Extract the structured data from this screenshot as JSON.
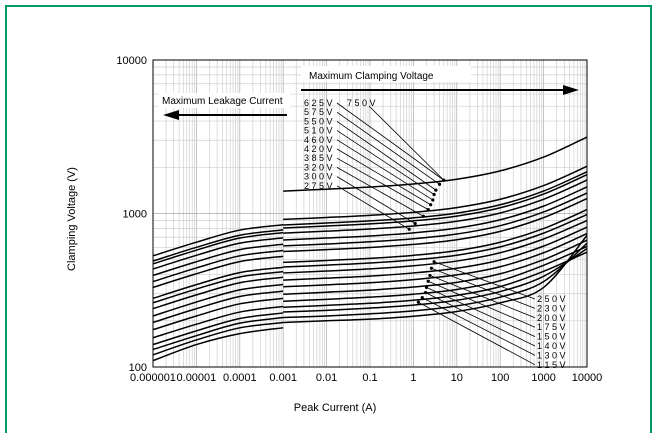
{
  "colors": {
    "frame": "#009a66",
    "grid": "#cfcfcf",
    "curve": "#000000",
    "background": "#ffffff"
  },
  "chart_data": {
    "type": "line",
    "title": "",
    "xlabel": "Peak Current (A)",
    "ylabel": "Clamping Voltage (V)",
    "x_scale": "log",
    "y_scale": "log",
    "xlim": [
      1e-06,
      10000
    ],
    "ylim": [
      100,
      10000
    ],
    "grid": true,
    "x_ticks": [
      "0.000001",
      "0.00001",
      "0.0001",
      "0.001",
      "0.01",
      "0.1",
      "1",
      "10",
      "100",
      "1000",
      "10000"
    ],
    "y_ticks": [
      "100",
      "1000",
      "10000"
    ],
    "annotations": {
      "max_clamping": "Maximum Clamping Voltage",
      "max_leakage": "Maximum Leakage Current"
    },
    "upper_labels": [
      "6 2 5 V",
      "5 7 5 V",
      "5 5 0 V",
      "5 1 0 V",
      "4 6 0 V",
      "4 2 0 V",
      "3 8 5 V",
      "3 2 0 V",
      "3 0 0 V",
      "2 7 5 V"
    ],
    "upper_top_label": "7 5 0 V",
    "lower_labels": [
      "2 5 0 V",
      "2 3 0 V",
      "2 0 0 V",
      "1 7 5 V",
      "1 5 0 V",
      "1 4 0 V",
      "1 3 0 V",
      "1 1 5 V"
    ],
    "series": [
      {
        "name": "1 1 5 V",
        "leakage": [
          [
            1e-06,
            110
          ],
          [
            1e-05,
            140
          ],
          [
            0.0001,
            165
          ],
          [
            0.001,
            180
          ]
        ],
        "clamping": [
          [
            0.001,
            195
          ],
          [
            0.01,
            200
          ],
          [
            0.1,
            205
          ],
          [
            1,
            214
          ],
          [
            10,
            230
          ],
          [
            100,
            262
          ],
          [
            1000,
            330
          ],
          [
            10000,
            720
          ]
        ]
      },
      {
        "name": "1 3 0 V",
        "leakage": [
          [
            1e-06,
            120
          ],
          [
            1e-05,
            150
          ],
          [
            0.0001,
            180
          ],
          [
            0.001,
            195
          ]
        ],
        "clamping": [
          [
            0.001,
            210
          ],
          [
            0.01,
            215
          ],
          [
            0.1,
            222
          ],
          [
            1,
            232
          ],
          [
            10,
            250
          ],
          [
            100,
            285
          ],
          [
            1000,
            360
          ],
          [
            10000,
            640
          ]
        ]
      },
      {
        "name": "1 4 0 V",
        "leakage": [
          [
            1e-06,
            130
          ],
          [
            1e-05,
            160
          ],
          [
            0.0001,
            193
          ],
          [
            0.001,
            210
          ]
        ],
        "clamping": [
          [
            0.001,
            228
          ],
          [
            0.01,
            234
          ],
          [
            0.1,
            242
          ],
          [
            1,
            253
          ],
          [
            10,
            272
          ],
          [
            100,
            310
          ],
          [
            1000,
            390
          ],
          [
            10000,
            590
          ]
        ]
      },
      {
        "name": "1 5 0 V",
        "leakage": [
          [
            1e-06,
            140
          ],
          [
            1e-05,
            172
          ],
          [
            0.0001,
            207
          ],
          [
            0.001,
            225
          ]
        ],
        "clamping": [
          [
            0.001,
            245
          ],
          [
            0.01,
            252
          ],
          [
            0.1,
            260
          ],
          [
            1,
            272
          ],
          [
            10,
            293
          ],
          [
            100,
            334
          ],
          [
            1000,
            420
          ],
          [
            10000,
            560
          ]
        ]
      },
      {
        "name": "1 7 5 V",
        "leakage": [
          [
            1e-06,
            155
          ],
          [
            1e-05,
            190
          ],
          [
            0.0001,
            228
          ],
          [
            0.001,
            248
          ]
        ],
        "clamping": [
          [
            0.001,
            268
          ],
          [
            0.01,
            276
          ],
          [
            0.1,
            285
          ],
          [
            1,
            298
          ],
          [
            10,
            320
          ],
          [
            100,
            365
          ],
          [
            1000,
            460
          ],
          [
            10000,
            610
          ]
        ]
      },
      {
        "name": "2 0 0 V",
        "leakage": [
          [
            1e-06,
            175
          ],
          [
            1e-05,
            215
          ],
          [
            0.0001,
            258
          ],
          [
            0.001,
            280
          ]
        ],
        "clamping": [
          [
            0.001,
            298
          ],
          [
            0.01,
            307
          ],
          [
            0.1,
            317
          ],
          [
            1,
            332
          ],
          [
            10,
            356
          ],
          [
            100,
            405
          ],
          [
            1000,
            500
          ],
          [
            10000,
            670
          ]
        ]
      },
      {
        "name": "2 3 0 V",
        "leakage": [
          [
            1e-06,
            195
          ],
          [
            1e-05,
            240
          ],
          [
            0.0001,
            288
          ],
          [
            0.001,
            312
          ]
        ],
        "clamping": [
          [
            0.001,
            333
          ],
          [
            0.01,
            343
          ],
          [
            0.1,
            354
          ],
          [
            1,
            371
          ],
          [
            10,
            398
          ],
          [
            100,
            450
          ],
          [
            1000,
            555
          ],
          [
            10000,
            740
          ]
        ]
      },
      {
        "name": "2 5 0 V",
        "leakage": [
          [
            1e-06,
            215
          ],
          [
            1e-05,
            265
          ],
          [
            0.0001,
            318
          ],
          [
            0.001,
            345
          ]
        ],
        "clamping": [
          [
            0.001,
            368
          ],
          [
            0.01,
            379
          ],
          [
            0.1,
            391
          ],
          [
            1,
            410
          ],
          [
            10,
            440
          ],
          [
            100,
            498
          ],
          [
            1000,
            613
          ],
          [
            10000,
            815
          ]
        ]
      },
      {
        "name": "2 7 5 V",
        "leakage": [
          [
            1e-06,
            240
          ],
          [
            1e-05,
            295
          ],
          [
            0.0001,
            354
          ],
          [
            0.001,
            384
          ]
        ],
        "clamping": [
          [
            0.001,
            410
          ],
          [
            0.01,
            422
          ],
          [
            0.1,
            436
          ],
          [
            1,
            457
          ],
          [
            10,
            490
          ],
          [
            100,
            555
          ],
          [
            1000,
            682
          ],
          [
            10000,
            900
          ]
        ]
      },
      {
        "name": "3 0 0 V",
        "leakage": [
          [
            1e-06,
            262
          ],
          [
            1e-05,
            322
          ],
          [
            0.0001,
            386
          ],
          [
            0.001,
            418
          ]
        ],
        "clamping": [
          [
            0.001,
            448
          ],
          [
            0.01,
            461
          ],
          [
            0.1,
            476
          ],
          [
            1,
            499
          ],
          [
            10,
            535
          ],
          [
            100,
            606
          ],
          [
            1000,
            745
          ],
          [
            10000,
            985
          ]
        ]
      },
      {
        "name": "3 2 0 V",
        "leakage": [
          [
            1e-06,
            280
          ],
          [
            1e-05,
            344
          ],
          [
            0.0001,
            412
          ],
          [
            0.001,
            446
          ]
        ],
        "clamping": [
          [
            0.001,
            480
          ],
          [
            0.01,
            494
          ],
          [
            0.1,
            510
          ],
          [
            1,
            534
          ],
          [
            10,
            573
          ],
          [
            100,
            650
          ],
          [
            1000,
            798
          ],
          [
            10000,
            1060
          ]
        ]
      },
      {
        "name": "3 8 5 V",
        "leakage": [
          [
            1e-06,
            330
          ],
          [
            1e-05,
            405
          ],
          [
            0.0001,
            486
          ],
          [
            0.001,
            526
          ]
        ],
        "clamping": [
          [
            0.001,
            565
          ],
          [
            0.01,
            582
          ],
          [
            0.1,
            601
          ],
          [
            1,
            629
          ],
          [
            10,
            675
          ],
          [
            100,
            765
          ],
          [
            1000,
            940
          ],
          [
            10000,
            1250
          ]
        ]
      },
      {
        "name": "4 2 0 V",
        "leakage": [
          [
            1e-06,
            360
          ],
          [
            1e-05,
            442
          ],
          [
            0.0001,
            530
          ],
          [
            0.001,
            574
          ]
        ],
        "clamping": [
          [
            0.001,
            615
          ],
          [
            0.01,
            633
          ],
          [
            0.1,
            654
          ],
          [
            1,
            685
          ],
          [
            10,
            735
          ],
          [
            100,
            833
          ],
          [
            1000,
            1023
          ],
          [
            10000,
            1360
          ]
        ]
      },
      {
        "name": "4 6 0 V",
        "leakage": [
          [
            1e-06,
            395
          ],
          [
            1e-05,
            485
          ],
          [
            0.0001,
            582
          ],
          [
            0.001,
            630
          ]
        ],
        "clamping": [
          [
            0.001,
            672
          ],
          [
            0.01,
            692
          ],
          [
            0.1,
            714
          ],
          [
            1,
            748
          ],
          [
            10,
            803
          ],
          [
            100,
            910
          ],
          [
            1000,
            1117
          ],
          [
            10000,
            1490
          ]
        ]
      },
      {
        "name": "5 1 0 V",
        "leakage": [
          [
            1e-06,
            435
          ],
          [
            1e-05,
            534
          ],
          [
            0.0001,
            641
          ],
          [
            0.001,
            694
          ]
        ],
        "clamping": [
          [
            0.001,
            745
          ],
          [
            0.01,
            767
          ],
          [
            0.1,
            792
          ],
          [
            1,
            829
          ],
          [
            10,
            890
          ],
          [
            100,
            1008
          ],
          [
            1000,
            1238
          ],
          [
            10000,
            1650
          ]
        ]
      },
      {
        "name": "5 5 0 V",
        "leakage": [
          [
            1e-06,
            470
          ],
          [
            1e-05,
            577
          ],
          [
            0.0001,
            692
          ],
          [
            0.001,
            750
          ]
        ],
        "clamping": [
          [
            0.001,
            805
          ],
          [
            0.01,
            829
          ],
          [
            0.1,
            856
          ],
          [
            1,
            896
          ],
          [
            10,
            962
          ],
          [
            100,
            1090
          ],
          [
            1000,
            1338
          ],
          [
            10000,
            1790
          ]
        ]
      },
      {
        "name": "5 7 5 V",
        "leakage": [
          [
            1e-06,
            490
          ],
          [
            1e-05,
            602
          ],
          [
            0.0001,
            722
          ],
          [
            0.001,
            782
          ]
        ],
        "clamping": [
          [
            0.001,
            842
          ],
          [
            0.01,
            867
          ],
          [
            0.1,
            895
          ],
          [
            1,
            937
          ],
          [
            10,
            1006
          ],
          [
            100,
            1140
          ],
          [
            1000,
            1400
          ],
          [
            10000,
            1870
          ]
        ]
      },
      {
        "name": "6 2 5 V",
        "leakage": [
          [
            1e-06,
            530
          ],
          [
            1e-05,
            650
          ],
          [
            0.0001,
            780
          ],
          [
            0.001,
            845
          ]
        ],
        "clamping": [
          [
            0.001,
            915
          ],
          [
            0.01,
            942
          ],
          [
            0.1,
            973
          ],
          [
            1,
            1018
          ],
          [
            10,
            1093
          ],
          [
            100,
            1238
          ],
          [
            1000,
            1520
          ],
          [
            10000,
            2030
          ]
        ]
      },
      {
        "name": "7 5 0 V",
        "leakage": [],
        "clamping": [
          [
            0.001,
            1400
          ],
          [
            0.01,
            1440
          ],
          [
            0.1,
            1488
          ],
          [
            1,
            1557
          ],
          [
            10,
            1672
          ],
          [
            100,
            1895
          ],
          [
            1000,
            2330
          ],
          [
            10000,
            3150
          ]
        ]
      }
    ],
    "upper_label_targets": [
      [
        5,
        1650
      ],
      [
        4,
        1550
      ],
      [
        3.3,
        1420
      ],
      [
        3,
        1330
      ],
      [
        2.8,
        1225
      ],
      [
        2.5,
        1140
      ],
      [
        2.2,
        1060
      ],
      [
        1.7,
        960
      ],
      [
        1.1,
        860
      ],
      [
        0.8,
        790
      ]
    ],
    "upper_top_target": [
      5,
      1650
    ],
    "lower_label_targets": [
      [
        3,
        485
      ],
      [
        2.6,
        440
      ],
      [
        2.4,
        395
      ],
      [
        2.2,
        362
      ],
      [
        2,
        330
      ],
      [
        1.9,
        305
      ],
      [
        1.6,
        283
      ],
      [
        1.3,
        264
      ]
    ]
  }
}
